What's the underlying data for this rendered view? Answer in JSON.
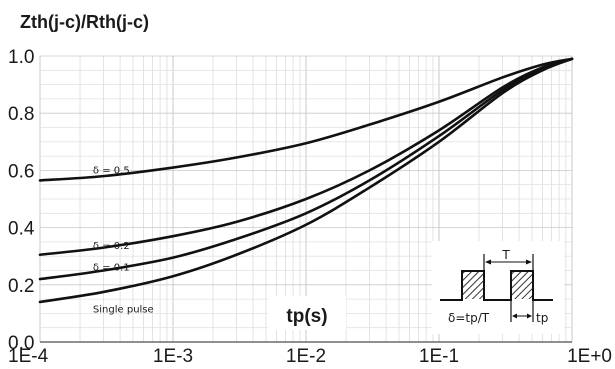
{
  "chart_data": {
    "type": "line",
    "title": "Zth(j-c)/Rth(j-c)",
    "xlabel": "tp(s)",
    "ylabel": "",
    "x_scale": "log",
    "xlim": [
      0.0001,
      1
    ],
    "ylim": [
      0,
      1
    ],
    "x_tick_labels": [
      "1E-4",
      "1E-3",
      "1E-2",
      "1E-1",
      "1E+0"
    ],
    "y_tick_labels": [
      "0.0",
      "0.2",
      "0.4",
      "0.6",
      "0.8",
      "1.0"
    ],
    "y_ticks": [
      0,
      0.2,
      0.4,
      0.6,
      0.8,
      1.0
    ],
    "grid": true,
    "series": [
      {
        "name": "δ = 0.5",
        "x": [
          0.0001,
          0.0003,
          0.001,
          0.003,
          0.01,
          0.03,
          0.1,
          0.3,
          0.6,
          1
        ],
        "values": [
          0.565,
          0.58,
          0.61,
          0.645,
          0.695,
          0.76,
          0.84,
          0.925,
          0.97,
          0.99
        ]
      },
      {
        "name": "δ = 0.2",
        "x": [
          0.0001,
          0.0003,
          0.001,
          0.003,
          0.01,
          0.03,
          0.1,
          0.3,
          0.6,
          1
        ],
        "values": [
          0.305,
          0.33,
          0.37,
          0.42,
          0.5,
          0.6,
          0.74,
          0.89,
          0.96,
          0.99
        ]
      },
      {
        "name": "δ = 0.1",
        "x": [
          0.0001,
          0.0003,
          0.001,
          0.003,
          0.01,
          0.03,
          0.1,
          0.3,
          0.6,
          1
        ],
        "values": [
          0.22,
          0.25,
          0.295,
          0.36,
          0.45,
          0.565,
          0.72,
          0.88,
          0.955,
          0.99
        ]
      },
      {
        "name": "Single pulse",
        "x": [
          0.0001,
          0.0003,
          0.001,
          0.003,
          0.01,
          0.03,
          0.1,
          0.3,
          0.6,
          1
        ],
        "values": [
          0.14,
          0.175,
          0.23,
          0.305,
          0.41,
          0.54,
          0.7,
          0.87,
          0.95,
          0.99
        ]
      }
    ],
    "inset": {
      "label_T": "T",
      "label_delta": "δ=tp/T",
      "label_tp": "tp"
    }
  }
}
